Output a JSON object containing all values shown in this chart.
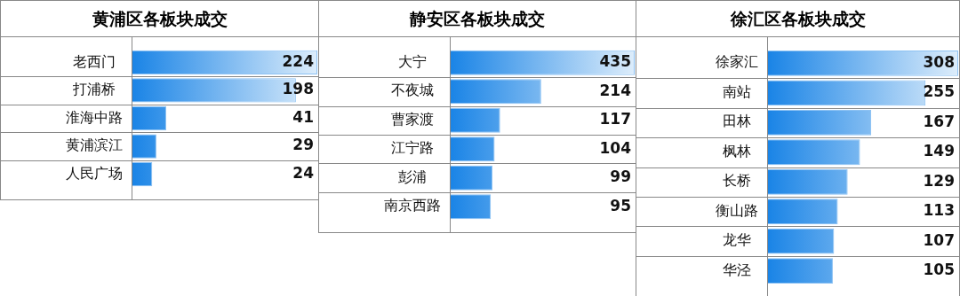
{
  "chart_data": [
    {
      "type": "bar",
      "orientation": "horizontal",
      "title": "黄浦区各板块成交",
      "categories": [
        "老西门",
        "打浦桥",
        "淮海中路",
        "黄浦滨江",
        "人民广场"
      ],
      "values": [
        224,
        198,
        41,
        29,
        24
      ],
      "color": "#1a84e6",
      "data_labels": true
    },
    {
      "type": "bar",
      "orientation": "horizontal",
      "title": "静安区各板块成交",
      "categories": [
        "大宁",
        "不夜城",
        "曹家渡",
        "江宁路",
        "彭浦",
        "南京西路"
      ],
      "values": [
        435,
        214,
        117,
        104,
        99,
        95
      ],
      "color": "#1a84e6",
      "data_labels": true
    },
    {
      "type": "bar",
      "orientation": "horizontal",
      "title": "徐汇区各板块成交",
      "categories": [
        "徐家汇",
        "南站",
        "田林",
        "枫林",
        "长桥",
        "衡山路",
        "龙华",
        "华泾"
      ],
      "values": [
        308,
        255,
        167,
        149,
        129,
        113,
        107,
        105
      ],
      "color": "#1a84e6",
      "data_labels": true
    }
  ]
}
